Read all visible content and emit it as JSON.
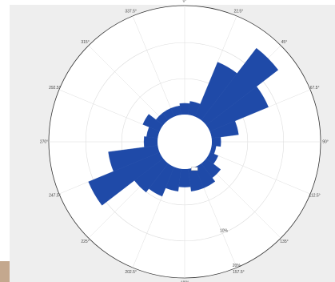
{
  "chart_data": {
    "type": "rose",
    "title": "",
    "direction_labels": [
      "0°",
      "22.5°",
      "45°",
      "67.5°",
      "90°",
      "112.5°",
      "135°",
      "157.5°",
      "180°",
      "202.5°",
      "225°",
      "247.5°",
      "270°",
      "292.5°",
      "315°",
      "337.5°"
    ],
    "ring_labels": [
      "10%",
      "20%"
    ],
    "center_label": "",
    "sector_width_deg": 15,
    "sectors": [
      {
        "direction": 0,
        "value": 2.5
      },
      {
        "direction": 15,
        "value": 3
      },
      {
        "direction": 30,
        "value": 13
      },
      {
        "direction": 45,
        "value": 20
      },
      {
        "direction": 60,
        "value": 14
      },
      {
        "direction": 75,
        "value": 6
      },
      {
        "direction": 90,
        "value": 2
      },
      {
        "direction": 105,
        "value": 1
      },
      {
        "direction": 120,
        "value": 2
      },
      {
        "direction": 135,
        "value": 4
      },
      {
        "direction": 150,
        "value": 5
      },
      {
        "direction": 165,
        "value": 5
      },
      {
        "direction": 180,
        "value": 4
      },
      {
        "direction": 195,
        "value": 5
      },
      {
        "direction": 210,
        "value": 7
      },
      {
        "direction": 225,
        "value": 8
      },
      {
        "direction": 240,
        "value": 17
      },
      {
        "direction": 255,
        "value": 11
      },
      {
        "direction": 270,
        "value": 3
      },
      {
        "direction": 285,
        "value": 2.5
      },
      {
        "direction": 300,
        "value": 4
      },
      {
        "direction": 315,
        "value": 2
      },
      {
        "direction": 330,
        "value": 2
      },
      {
        "direction": 345,
        "value": 2
      }
    ],
    "rmax": 24,
    "colors": {
      "sector": "#1f4aa8",
      "grid": "#dddddd",
      "rim": "#333333"
    }
  }
}
